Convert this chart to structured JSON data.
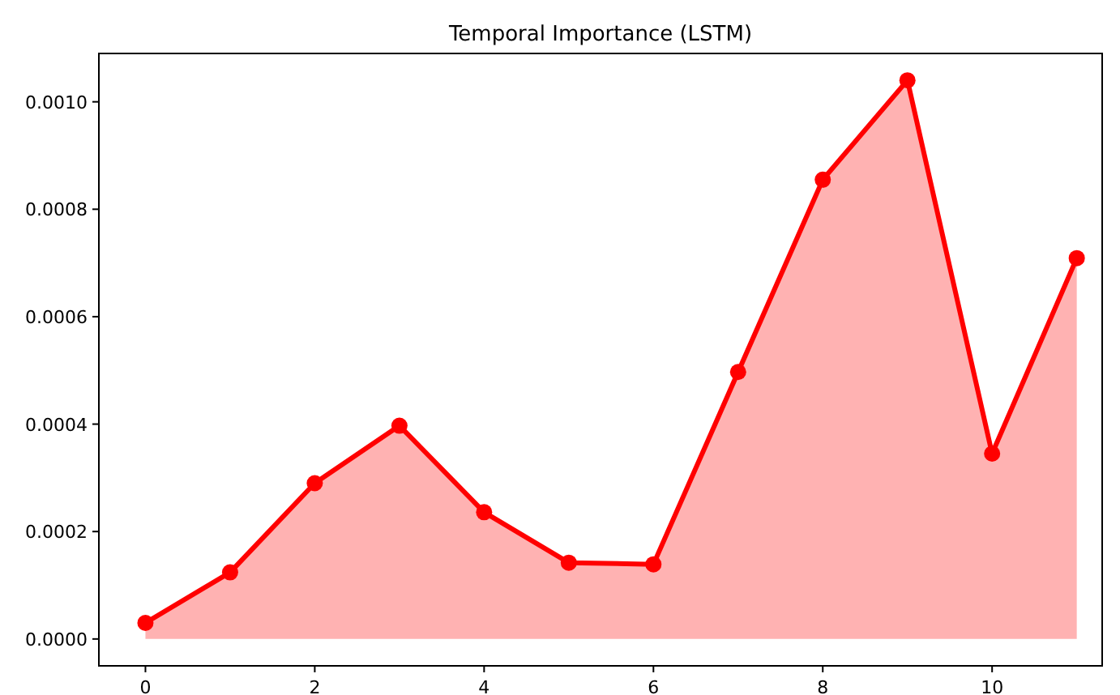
{
  "chart_data": {
    "type": "area",
    "title": "Temporal Importance (LSTM)",
    "x": [
      0,
      1,
      2,
      3,
      4,
      5,
      6,
      7,
      8,
      9,
      10,
      11
    ],
    "series": [
      {
        "color": "#ff0000",
        "values": [
          3e-05,
          0.000124,
          0.00029,
          0.000397,
          0.000236,
          0.000142,
          0.000139,
          0.000497,
          0.000855,
          0.00104,
          0.000345,
          0.000709
        ]
      }
    ],
    "xlim": [
      -0.55,
      11.3
    ],
    "xticks": [
      0,
      2,
      4,
      6,
      8,
      10
    ],
    "ylim": [
      -5e-05,
      0.00109
    ],
    "yticks": [
      {
        "value": 0,
        "label": "0.0000"
      },
      {
        "value": 0.0002,
        "label": "0.0002"
      },
      {
        "value": 0.0004,
        "label": "0.0004"
      },
      {
        "value": 0.0006,
        "label": "0.0006"
      },
      {
        "value": 0.0008,
        "label": "0.0008"
      },
      {
        "value": 0.001,
        "label": "0.0010"
      }
    ],
    "marker": "circle",
    "grid": false
  }
}
